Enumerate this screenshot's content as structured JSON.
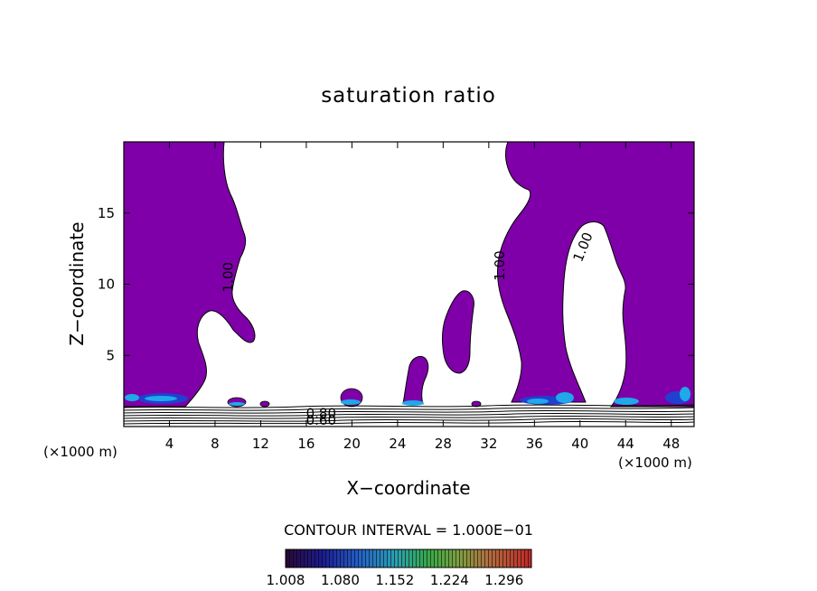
{
  "chart_data": {
    "type": "contour",
    "title": "saturation ratio",
    "xlabel": "X−coordinate",
    "ylabel": "Z−coordinate",
    "x_unit_label": "(×1000 m)",
    "z_unit_label": "(×1000 m)",
    "xlim": [
      0,
      50
    ],
    "ylim": [
      0,
      20
    ],
    "x_ticks": [
      4,
      8,
      12,
      16,
      20,
      24,
      28,
      32,
      36,
      40,
      44,
      48
    ],
    "y_ticks": [
      5,
      10,
      15
    ],
    "contour_interval_text": "CONTOUR INTERVAL = 1.000E−01",
    "contour_labels": [
      {
        "text": "1.00",
        "x": 9.2,
        "z": 10.5,
        "angle": -90
      },
      {
        "text": "1.00",
        "x": 33.0,
        "z": 11.3,
        "angle": -90
      },
      {
        "text": "1.00",
        "x": 40.3,
        "z": 12.6,
        "angle": -68
      },
      {
        "text": "0.80",
        "x": 17.3,
        "z": 0.9,
        "angle": 0
      },
      {
        "text": "0.60",
        "x": 17.3,
        "z": 0.4,
        "angle": 0
      }
    ],
    "colorbar": {
      "min": 1.008,
      "max": 1.332,
      "labels": [
        "1.008",
        "1.080",
        "1.152",
        "1.224",
        "1.296"
      ],
      "colors": [
        "#3a0a4a",
        "#1a2aa0",
        "#2a70d0",
        "#30b0a0",
        "#40b040",
        "#a0b040",
        "#c06030",
        "#c02020"
      ]
    },
    "colors": {
      "fill_main": "#7f00a8",
      "fill_light": "#20a8e8",
      "fill_dark": "#2040d0",
      "contour_line": "#000000"
    }
  }
}
